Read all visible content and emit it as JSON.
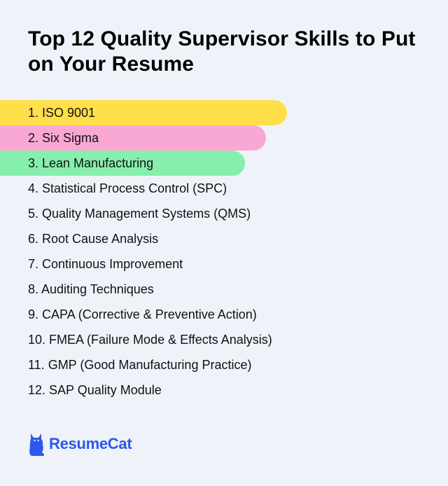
{
  "title": "Top 12 Quality Supervisor Skills to Put on Your Resume",
  "skills": [
    {
      "label": "1. ISO 9001",
      "highlight": "#ffe04b"
    },
    {
      "label": "2. Six Sigma",
      "highlight": "#f9a8d4"
    },
    {
      "label": "3. Lean Manufacturing",
      "highlight": "#86efac"
    },
    {
      "label": "4. Statistical Process Control (SPC)",
      "highlight": null
    },
    {
      "label": "5. Quality Management Systems (QMS)",
      "highlight": null
    },
    {
      "label": "6. Root Cause Analysis",
      "highlight": null
    },
    {
      "label": "7. Continuous Improvement",
      "highlight": null
    },
    {
      "label": "8. Auditing Techniques",
      "highlight": null
    },
    {
      "label": "9. CAPA (Corrective & Preventive Action)",
      "highlight": null
    },
    {
      "label": "10. FMEA (Failure Mode & Effects Analysis)",
      "highlight": null
    },
    {
      "label": "11. GMP (Good Manufacturing Practice)",
      "highlight": null
    },
    {
      "label": "12. SAP Quality Module",
      "highlight": null
    }
  ],
  "brand": {
    "name": "ResumeCat",
    "icon": "cat-icon",
    "color": "#2d57ee"
  }
}
